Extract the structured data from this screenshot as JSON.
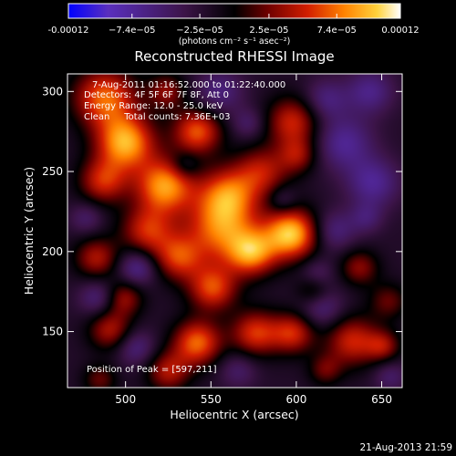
{
  "chart_data": {
    "type": "heatmap",
    "title": "Reconstructed RHESSI Image",
    "xlabel": "Heliocentric X (arcsec)",
    "ylabel": "Heliocentric Y (arcsec)",
    "xlim": [
      466,
      662
    ],
    "ylim": [
      115,
      311
    ],
    "xticks": [
      500,
      550,
      600,
      650
    ],
    "yticks": [
      150,
      200,
      250,
      300
    ],
    "colorbar": {
      "range": [
        -0.00012,
        0.00012
      ],
      "tick_values": [
        -0.00012,
        -7.4e-05,
        -2.5e-05,
        2.5e-05,
        7.4e-05,
        0.00012
      ],
      "tick_labels": [
        "-0.00012",
        "−7.4e−05",
        "−2.5e−05",
        "2.5e−05",
        "7.4e−05",
        "0.00012"
      ],
      "unit_label": "(photons cm⁻² s⁻¹ asec⁻²)",
      "colormap": [
        "#0000ff",
        "#5a2fbe",
        "#3c1448",
        "#000000",
        "#6e0000",
        "#d21e00",
        "#ff8200",
        "#ffd23c",
        "#ffffff"
      ]
    },
    "annotations": {
      "time": "7-Aug-2011 01:16:52.000 to 01:22:40.000",
      "detectors": "Detectors: 4F 5F 6F 7F 8F, Att 0",
      "energy": "Energy Range: 12.0 - 25.0 keV",
      "clean": "Clean     Total counts: 7.36E+03",
      "peak": "Position of Peak = [597,211]"
    },
    "peak": [
      597,
      211
    ],
    "blobs": [
      {
        "x": 597,
        "y": 211,
        "s": 11,
        "a": 0.00012
      },
      {
        "x": 556,
        "y": 214,
        "s": 15,
        "a": 9e-05
      },
      {
        "x": 523,
        "y": 241,
        "s": 12,
        "a": 0.000105
      },
      {
        "x": 500,
        "y": 268,
        "s": 12,
        "a": 0.00011
      },
      {
        "x": 488,
        "y": 296,
        "s": 13,
        "a": 9e-05
      },
      {
        "x": 487,
        "y": 244,
        "s": 10,
        "a": 7e-05
      },
      {
        "x": 542,
        "y": 275,
        "s": 10,
        "a": 8.5e-05
      },
      {
        "x": 560,
        "y": 236,
        "s": 12,
        "a": 8e-05
      },
      {
        "x": 580,
        "y": 250,
        "s": 11,
        "a": 6e-05
      },
      {
        "x": 598,
        "y": 281,
        "s": 11,
        "a": 7e-05
      },
      {
        "x": 601,
        "y": 260,
        "s": 8,
        "a": 5e-05
      },
      {
        "x": 513,
        "y": 213,
        "s": 11,
        "a": 7e-05
      },
      {
        "x": 531,
        "y": 196,
        "s": 10,
        "a": 7e-05
      },
      {
        "x": 574,
        "y": 199,
        "s": 10,
        "a": 9e-05
      },
      {
        "x": 551,
        "y": 177,
        "s": 10,
        "a": 8e-05
      },
      {
        "x": 483,
        "y": 196,
        "s": 9,
        "a": 6e-05
      },
      {
        "x": 499,
        "y": 171,
        "s": 8,
        "a": 5.5e-05
      },
      {
        "x": 491,
        "y": 151,
        "s": 9,
        "a": 6e-05
      },
      {
        "x": 542,
        "y": 143,
        "s": 10,
        "a": 9e-05
      },
      {
        "x": 576,
        "y": 149,
        "s": 10,
        "a": 7.5e-05
      },
      {
        "x": 598,
        "y": 149,
        "s": 9,
        "a": 7e-05
      },
      {
        "x": 610,
        "y": 176,
        "s": 7,
        "a": 4e-05
      },
      {
        "x": 637,
        "y": 190,
        "s": 8,
        "a": 5e-05
      },
      {
        "x": 654,
        "y": 169,
        "s": 8,
        "a": 4e-05
      },
      {
        "x": 633,
        "y": 144,
        "s": 11,
        "a": 7e-05
      },
      {
        "x": 651,
        "y": 141,
        "s": 7,
        "a": 5e-05
      },
      {
        "x": 617,
        "y": 126,
        "s": 7,
        "a": 4e-05
      },
      {
        "x": 525,
        "y": 125,
        "s": 9,
        "a": 6e-05
      },
      {
        "x": 485,
        "y": 120,
        "s": 7,
        "a": 4e-05
      },
      {
        "x": 524,
        "y": 300,
        "s": 8,
        "a": 5e-05
      },
      {
        "x": 628,
        "y": 268,
        "s": 12,
        "a": -5e-05
      },
      {
        "x": 645,
        "y": 243,
        "s": 11,
        "a": -5e-05
      },
      {
        "x": 617,
        "y": 295,
        "s": 9,
        "a": -4e-05
      },
      {
        "x": 643,
        "y": 300,
        "s": 10,
        "a": -4.5e-05
      },
      {
        "x": 555,
        "y": 300,
        "s": 10,
        "a": -4e-05
      },
      {
        "x": 572,
        "y": 280,
        "s": 7,
        "a": -3e-05
      },
      {
        "x": 622,
        "y": 213,
        "s": 9,
        "a": -4e-05
      },
      {
        "x": 612,
        "y": 186,
        "s": 7,
        "a": -3e-05
      },
      {
        "x": 507,
        "y": 190,
        "s": 8,
        "a": -5e-05
      },
      {
        "x": 484,
        "y": 171,
        "s": 8,
        "a": -4e-05
      },
      {
        "x": 506,
        "y": 140,
        "s": 8,
        "a": -4e-05
      },
      {
        "x": 615,
        "y": 165,
        "s": 9,
        "a": -4e-05
      },
      {
        "x": 641,
        "y": 221,
        "s": 7,
        "a": -3e-05
      },
      {
        "x": 477,
        "y": 221,
        "s": 7,
        "a": -3e-05
      },
      {
        "x": 566,
        "y": 126,
        "s": 8,
        "a": -3e-05
      },
      {
        "x": 655,
        "y": 122,
        "s": 7,
        "a": -3e-05
      },
      {
        "x": 535,
        "y": 254,
        "s": 6,
        "a": -3e-05
      },
      {
        "x": 592,
        "y": 232,
        "s": 6,
        "a": -3e-05
      }
    ],
    "base_level": -2e-05
  },
  "footer": {
    "timestamp": "21-Aug-2013 21:59"
  }
}
